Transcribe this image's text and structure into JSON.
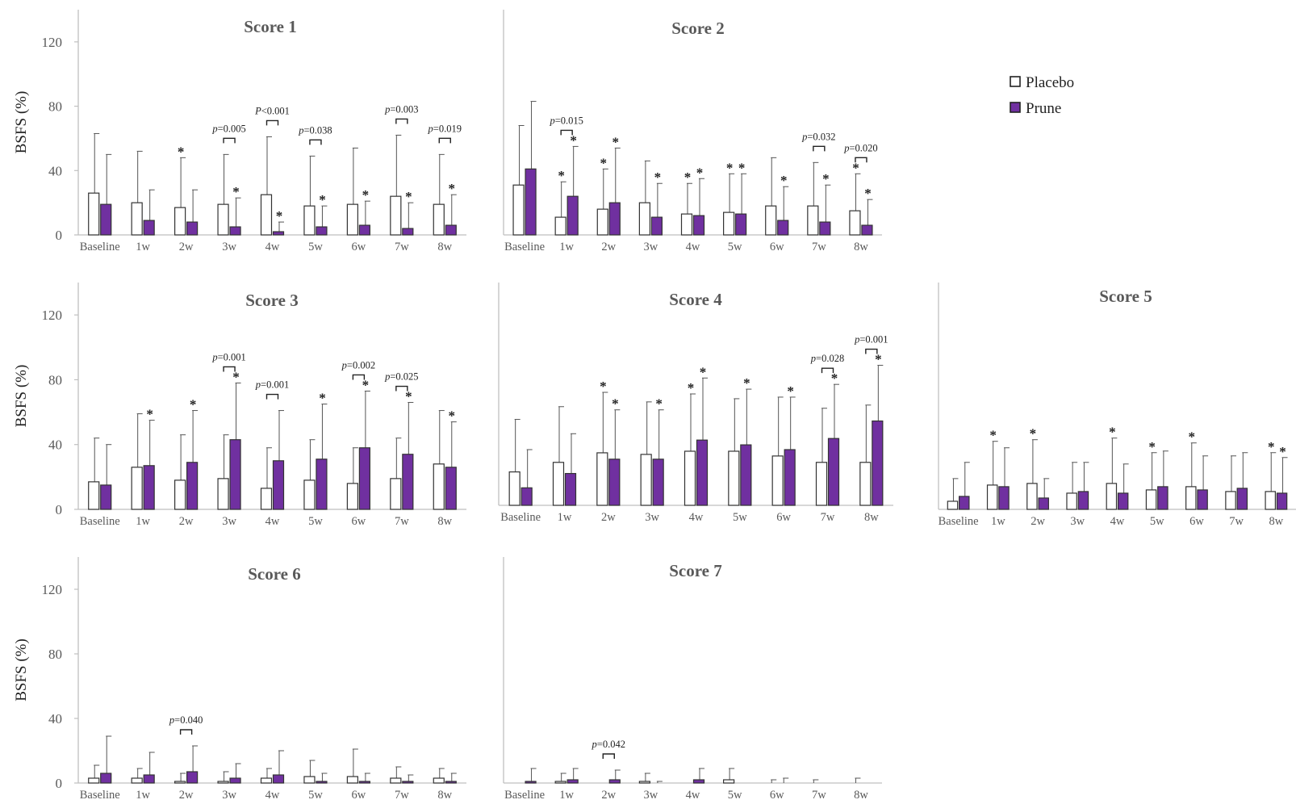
{
  "colors": {
    "placebo_fill": "#ffffff",
    "prune_fill": "#7030a0",
    "bar_stroke": "#333333",
    "axis": "#bfbfbf",
    "text_gray": "#595959"
  },
  "legend": {
    "placebo": "Placebo",
    "prune": "Prune"
  },
  "y_label": "BSFS (%)",
  "chart_data": [
    {
      "type": "bar",
      "title": "Score 1",
      "ylabel": "BSFS (%)",
      "ylim": [
        0,
        140
      ],
      "yticks": [
        0,
        40,
        80,
        120
      ],
      "categories": [
        "Baseline",
        "1w",
        "2w",
        "3w",
        "4w",
        "5w",
        "6w",
        "7w",
        "8w"
      ],
      "series": [
        {
          "name": "Placebo",
          "values": [
            26,
            20,
            17,
            19,
            25,
            18,
            19,
            24,
            19
          ],
          "errors": [
            37,
            32,
            31,
            31,
            36,
            31,
            35,
            38,
            31
          ],
          "stars": [
            0,
            0,
            1,
            0,
            0,
            0,
            0,
            0,
            0
          ]
        },
        {
          "name": "Prune",
          "values": [
            19,
            9,
            8,
            5,
            2,
            5,
            6,
            4,
            6
          ],
          "errors": [
            31,
            19,
            20,
            18,
            6,
            13,
            15,
            16,
            19
          ],
          "stars": [
            0,
            0,
            0,
            1,
            1,
            1,
            1,
            1,
            1
          ]
        }
      ],
      "annotations": [
        {
          "category": "3w",
          "text": "p=0.005",
          "italic": "p"
        },
        {
          "category": "4w",
          "text": "P<0.001",
          "italic": "P"
        },
        {
          "category": "5w",
          "text": "p=0.038",
          "italic": "p"
        },
        {
          "category": "7w",
          "text": "p=0.003",
          "italic": "p"
        },
        {
          "category": "8w",
          "text": "p=0.019",
          "italic": "p"
        }
      ]
    },
    {
      "type": "bar",
      "title": "Score 2",
      "ylabel": "",
      "ylim": [
        0,
        140
      ],
      "yticks": [],
      "categories": [
        "Baseline",
        "1w",
        "2w",
        "3w",
        "4w",
        "5w",
        "6w",
        "7w",
        "8w"
      ],
      "series": [
        {
          "name": "Placebo",
          "values": [
            31,
            11,
            16,
            20,
            13,
            14,
            18,
            18,
            15
          ],
          "errors": [
            37,
            22,
            25,
            26,
            19,
            24,
            30,
            27,
            23
          ],
          "stars": [
            0,
            1,
            1,
            0,
            1,
            1,
            0,
            0,
            1
          ]
        },
        {
          "name": "Prune",
          "values": [
            41,
            24,
            20,
            11,
            12,
            13,
            9,
            8,
            6
          ],
          "errors": [
            42,
            31,
            34,
            21,
            23,
            25,
            21,
            23,
            16
          ],
          "stars": [
            0,
            1,
            1,
            1,
            1,
            1,
            1,
            1,
            1
          ]
        }
      ],
      "annotations": [
        {
          "category": "1w",
          "text": "p=0.015",
          "italic": "p"
        },
        {
          "category": "7w",
          "text": "p=0.032",
          "italic": "p"
        },
        {
          "category": "8w",
          "text": "p=0.020",
          "italic": "p"
        }
      ]
    },
    {
      "type": "bar",
      "title": "Score 3",
      "ylabel": "BSFS (%)",
      "ylim": [
        0,
        140
      ],
      "yticks": [
        0,
        40,
        80,
        120
      ],
      "categories": [
        "Baseline",
        "1w",
        "2w",
        "3w",
        "4w",
        "5w",
        "6w",
        "7w",
        "8w"
      ],
      "series": [
        {
          "name": "Placebo",
          "values": [
            17,
            26,
            18,
            19,
            13,
            18,
            16,
            19,
            28
          ],
          "errors": [
            27,
            33,
            28,
            27,
            25,
            25,
            22,
            25,
            33
          ],
          "stars": [
            0,
            0,
            0,
            0,
            0,
            0,
            0,
            0,
            0
          ]
        },
        {
          "name": "Prune",
          "values": [
            15,
            27,
            29,
            43,
            30,
            31,
            38,
            34,
            26
          ],
          "errors": [
            25,
            28,
            32,
            35,
            31,
            34,
            35,
            32,
            28
          ],
          "stars": [
            0,
            1,
            1,
            1,
            0,
            1,
            1,
            1,
            1
          ]
        }
      ],
      "annotations": [
        {
          "category": "3w",
          "text": "p=0.001",
          "italic": "p"
        },
        {
          "category": "4w",
          "text": "p=0.001",
          "italic": "p"
        },
        {
          "category": "6w",
          "text": "p=0.002",
          "italic": "p"
        },
        {
          "category": "7w",
          "text": "p=0.025",
          "italic": "p"
        }
      ]
    },
    {
      "type": "bar",
      "title": "Score 4",
      "ylabel": "",
      "ylim": [
        0,
        140
      ],
      "yticks": [],
      "categories": [
        "Baseline",
        "1w",
        "2w",
        "3w",
        "4w",
        "5w",
        "6w",
        "7w",
        "8w"
      ],
      "series": [
        {
          "name": "Placebo",
          "values": [
            21,
            27,
            33,
            32,
            34,
            34,
            31,
            27,
            27
          ],
          "errors": [
            33,
            35,
            38,
            33,
            36,
            33,
            37,
            34,
            36
          ],
          "stars": [
            0,
            0,
            1,
            0,
            1,
            0,
            0,
            0,
            0
          ]
        },
        {
          "name": "Prune",
          "values": [
            11,
            20,
            29,
            29,
            41,
            38,
            35,
            42,
            53
          ],
          "errors": [
            24,
            25,
            31,
            31,
            39,
            35,
            33,
            34,
            35
          ],
          "stars": [
            0,
            0,
            1,
            1,
            1,
            1,
            1,
            1,
            1
          ]
        }
      ],
      "annotations": [
        {
          "category": "7w",
          "text": "p=0.028",
          "italic": "p"
        },
        {
          "category": "8w",
          "text": "p=0.001",
          "italic": "p"
        }
      ]
    },
    {
      "type": "bar",
      "title": "Score 5",
      "ylabel": "",
      "ylim": [
        0,
        140
      ],
      "yticks": [],
      "categories": [
        "Baseline",
        "1w",
        "2w",
        "3w",
        "4w",
        "5w",
        "6w",
        "7w",
        "8w"
      ],
      "series": [
        {
          "name": "Placebo",
          "values": [
            5,
            15,
            16,
            10,
            16,
            12,
            14,
            11,
            11
          ],
          "errors": [
            14,
            27,
            27,
            19,
            28,
            23,
            27,
            22,
            24
          ],
          "stars": [
            0,
            1,
            1,
            0,
            1,
            1,
            1,
            0,
            1
          ]
        },
        {
          "name": "Prune",
          "values": [
            8,
            14,
            7,
            11,
            10,
            14,
            12,
            13,
            10
          ],
          "errors": [
            21,
            24,
            12,
            18,
            18,
            22,
            21,
            22,
            22
          ],
          "stars": [
            0,
            0,
            0,
            0,
            0,
            0,
            0,
            0,
            1
          ]
        }
      ],
      "annotations": []
    },
    {
      "type": "bar",
      "title": "Score 6",
      "ylabel": "BSFS (%)",
      "ylim": [
        0,
        140
      ],
      "yticks": [
        0,
        40,
        80,
        120
      ],
      "categories": [
        "Baseline",
        "1w",
        "2w",
        "3w",
        "4w",
        "5w",
        "6w",
        "7w",
        "8w"
      ],
      "series": [
        {
          "name": "Placebo",
          "values": [
            3,
            3,
            1,
            1,
            3,
            4,
            4,
            3,
            3
          ],
          "errors": [
            8,
            6,
            5,
            6,
            6,
            10,
            17,
            7,
            6
          ],
          "stars": [
            0,
            0,
            0,
            0,
            0,
            0,
            0,
            0,
            0
          ]
        },
        {
          "name": "Prune",
          "values": [
            6,
            5,
            7,
            3,
            5,
            1,
            1,
            1,
            1
          ],
          "errors": [
            23,
            14,
            16,
            9,
            15,
            5,
            5,
            4,
            5
          ],
          "stars": [
            0,
            0,
            0,
            0,
            0,
            0,
            0,
            0,
            0
          ]
        }
      ],
      "annotations": [
        {
          "category": "2w",
          "text": "p=0.040",
          "italic": "p"
        }
      ]
    },
    {
      "type": "bar",
      "title": "Score 7",
      "ylabel": "",
      "ylim": [
        0,
        140
      ],
      "yticks": [],
      "categories": [
        "Baseline",
        "1w",
        "2w",
        "3w",
        "4w",
        "5w",
        "6w",
        "7w",
        "8w"
      ],
      "series": [
        {
          "name": "Placebo",
          "values": [
            0,
            1,
            0,
            1,
            0,
            2,
            0,
            0,
            0
          ],
          "errors": [
            0,
            5,
            0,
            5,
            0,
            7,
            2,
            2,
            3
          ],
          "stars": [
            0,
            0,
            0,
            0,
            0,
            0,
            0,
            0,
            0
          ]
        },
        {
          "name": "Prune",
          "values": [
            1,
            2,
            2,
            0,
            2,
            0,
            0,
            0,
            0
          ],
          "errors": [
            8,
            7,
            6,
            1,
            7,
            0,
            3,
            0,
            0
          ],
          "stars": [
            0,
            0,
            0,
            0,
            0,
            0,
            0,
            0,
            0
          ]
        }
      ],
      "annotations": [
        {
          "category": "2w",
          "text": "p=0.042",
          "italic": "p"
        }
      ]
    }
  ]
}
